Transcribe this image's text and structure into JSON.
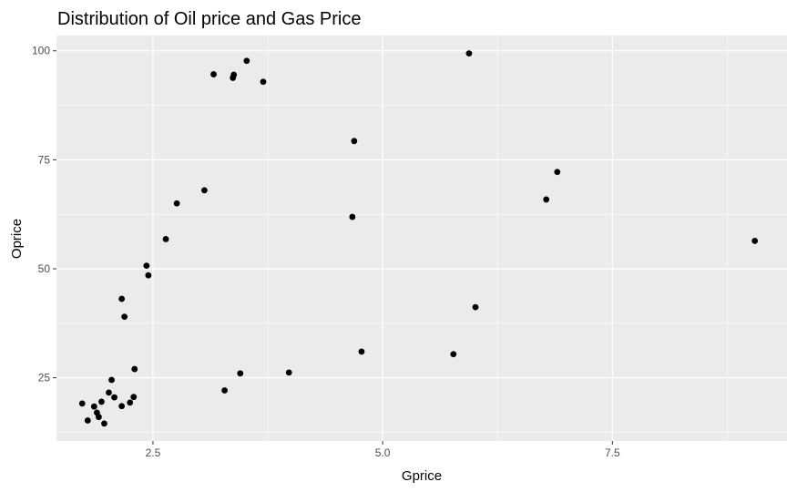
{
  "chart_data": {
    "type": "scatter",
    "title": "Distribution of Oil price and Gas Price",
    "xlabel": "Gprice",
    "ylabel": "Oprice",
    "xlim": [
      1.45,
      9.4
    ],
    "ylim": [
      10.5,
      103.5
    ],
    "x_ticks": [
      2.5,
      5.0,
      7.5
    ],
    "x_tick_labels": [
      "2.5",
      "5.0",
      "7.5"
    ],
    "y_ticks": [
      25,
      50,
      75,
      100
    ],
    "y_tick_labels": [
      "25",
      "50",
      "75",
      "100"
    ],
    "grid": true,
    "legend": "none",
    "colors": {
      "panel": "#ebebeb",
      "grid": "#ffffff",
      "point": "#000000",
      "tick_text": "#4d4d4d"
    },
    "points": [
      {
        "x": 1.73,
        "y": 19.1
      },
      {
        "x": 1.79,
        "y": 15.2
      },
      {
        "x": 1.86,
        "y": 18.4
      },
      {
        "x": 1.89,
        "y": 17.0
      },
      {
        "x": 1.91,
        "y": 16.0
      },
      {
        "x": 1.94,
        "y": 19.5
      },
      {
        "x": 1.97,
        "y": 14.5
      },
      {
        "x": 2.02,
        "y": 21.6
      },
      {
        "x": 2.05,
        "y": 24.5
      },
      {
        "x": 2.08,
        "y": 20.5
      },
      {
        "x": 2.16,
        "y": 18.5
      },
      {
        "x": 2.16,
        "y": 43.1
      },
      {
        "x": 2.19,
        "y": 39.0
      },
      {
        "x": 2.25,
        "y": 19.3
      },
      {
        "x": 2.29,
        "y": 20.6
      },
      {
        "x": 2.3,
        "y": 27.0
      },
      {
        "x": 2.43,
        "y": 50.7
      },
      {
        "x": 2.45,
        "y": 48.5
      },
      {
        "x": 2.64,
        "y": 56.8
      },
      {
        "x": 2.76,
        "y": 65.0
      },
      {
        "x": 3.06,
        "y": 68.0
      },
      {
        "x": 3.16,
        "y": 94.6
      },
      {
        "x": 3.28,
        "y": 22.1
      },
      {
        "x": 3.37,
        "y": 93.8
      },
      {
        "x": 3.38,
        "y": 94.5
      },
      {
        "x": 3.45,
        "y": 26.0
      },
      {
        "x": 3.52,
        "y": 97.7
      },
      {
        "x": 3.7,
        "y": 92.9
      },
      {
        "x": 3.98,
        "y": 26.2
      },
      {
        "x": 4.67,
        "y": 61.9
      },
      {
        "x": 4.69,
        "y": 79.3
      },
      {
        "x": 4.77,
        "y": 31.0
      },
      {
        "x": 5.77,
        "y": 30.4
      },
      {
        "x": 5.94,
        "y": 99.4
      },
      {
        "x": 6.01,
        "y": 41.2
      },
      {
        "x": 6.78,
        "y": 65.9
      },
      {
        "x": 6.9,
        "y": 72.2
      },
      {
        "x": 9.05,
        "y": 56.4
      }
    ]
  }
}
